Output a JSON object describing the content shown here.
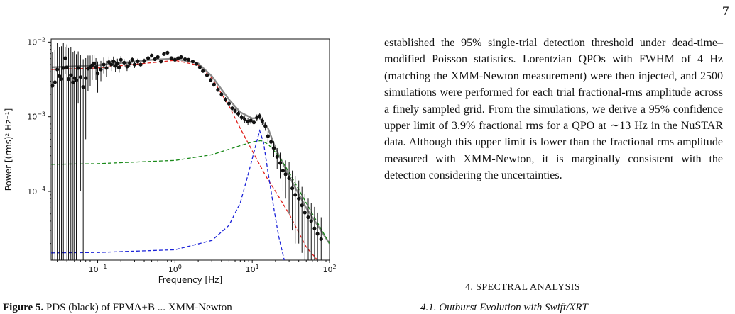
{
  "page_number": "7",
  "paragraph": "established the 95% single-trial detection threshold under dead-time–modified Poisson statistics. Lorentzian QPOs with FWHM of 4 Hz (matching the XMM-Newton measurement) were then injected, and 2500 simulations were performed for each trial fractional-rms amplitude across a finely sampled grid. From the simulations, we derive a 95% confidence upper limit of 3.9% fractional rms for a QPO at ∼13 Hz in the NuSTAR data. Although this upper limit is lower than the fractional rms amplitude measured with XMM-Newton, it is marginally consistent with the detection considering the uncertainties.",
  "section_heading": "4.  SPECTRAL ANALYSIS",
  "subsection_heading": "4.1.  Outburst Evolution with Swift/XRT",
  "caption_fragment": {
    "label": "Figure 5.",
    "text": "PDS (black) of FPMA+B ... XMM-Newton"
  },
  "chart_data": {
    "type": "scatter",
    "xscale": "log",
    "yscale": "log",
    "xlim": [
      0.025,
      100
    ],
    "ylim": [
      1.2e-05,
      0.011
    ],
    "xlabel": "Frequency [Hz]",
    "ylabel": "Power [(rms)² Hz⁻¹]",
    "x_ticks": [
      {
        "v": 0.1,
        "b": "10",
        "e": "−1"
      },
      {
        "v": 1,
        "b": "10",
        "e": "0"
      },
      {
        "v": 10,
        "b": "10",
        "e": "1"
      },
      {
        "v": 100,
        "b": "10",
        "e": "2"
      }
    ],
    "y_ticks": [
      {
        "v": 0.0001,
        "b": "10",
        "e": "−4"
      },
      {
        "v": 0.001,
        "b": "10",
        "e": "−3"
      },
      {
        "v": 0.01,
        "b": "10",
        "e": "−2"
      }
    ],
    "grid": false,
    "colors": {
      "data": "#111111",
      "total": "#8c8c8c",
      "red": "#e0201b",
      "green": "#1a8a1a",
      "blue": "#1a22d8"
    },
    "data_points": [
      [
        0.026,
        0.0026,
        0.0047
      ],
      [
        0.028,
        0.0029,
        0.0049
      ],
      [
        0.03,
        0.0043,
        0.0055
      ],
      [
        0.032,
        0.0035,
        0.0051
      ],
      [
        0.034,
        0.0032,
        0.0056
      ],
      [
        0.036,
        0.0045,
        0.0053
      ],
      [
        0.038,
        0.0061,
        0.0024
      ],
      [
        0.04,
        0.0046,
        0.0047
      ],
      [
        0.042,
        0.0032,
        0.0051
      ],
      [
        0.045,
        0.0036,
        0.005
      ],
      [
        0.048,
        0.0029,
        0.0045
      ],
      [
        0.05,
        0.0033,
        0.0043
      ],
      [
        0.053,
        0.0031,
        0.0038
      ],
      [
        0.056,
        0.0045,
        0.003
      ],
      [
        0.06,
        0.0034,
        0.0033
      ],
      [
        0.065,
        0.0025,
        0.0034
      ],
      [
        0.07,
        0.0033,
        0.0028
      ],
      [
        0.075,
        0.0044,
        0.0022
      ],
      [
        0.08,
        0.0046,
        0.002
      ],
      [
        0.085,
        0.0049,
        0.0018
      ],
      [
        0.09,
        0.0052,
        0.0016
      ],
      [
        0.095,
        0.0046,
        0.0015
      ],
      [
        0.1,
        0.0038,
        0.0017
      ],
      [
        0.11,
        0.0043,
        0.0013
      ],
      [
        0.12,
        0.005,
        0.0012
      ],
      [
        0.13,
        0.0045,
        0.0011
      ],
      [
        0.14,
        0.0054,
        0.001
      ],
      [
        0.15,
        0.005,
        0.0009
      ],
      [
        0.16,
        0.0055,
        0.0009
      ],
      [
        0.17,
        0.0048,
        0.0008
      ],
      [
        0.18,
        0.0052,
        0.0008
      ],
      [
        0.19,
        0.0046,
        0.0007
      ],
      [
        0.2,
        0.0058,
        0.0007
      ],
      [
        0.22,
        0.0053,
        0.0006
      ],
      [
        0.24,
        0.0047,
        0.0006
      ],
      [
        0.26,
        0.0052,
        0.0005
      ],
      [
        0.28,
        0.0058,
        0.0005
      ],
      [
        0.3,
        0.005,
        0.0005
      ],
      [
        0.33,
        0.0055,
        0.0005
      ],
      [
        0.36,
        0.005,
        0.0004
      ],
      [
        0.4,
        0.0056,
        0.0004
      ],
      [
        0.45,
        0.0061,
        0.0004
      ],
      [
        0.5,
        0.0066,
        0.0004
      ],
      [
        0.55,
        0.0059,
        0.0003
      ],
      [
        0.6,
        0.0063,
        0.0003
      ],
      [
        0.66,
        0.0055,
        0.0003
      ],
      [
        0.72,
        0.0069,
        0.0003
      ],
      [
        0.8,
        0.0072,
        0.0003
      ],
      [
        0.9,
        0.0061,
        0.0003
      ],
      [
        1.0,
        0.0058,
        0.0003
      ],
      [
        1.1,
        0.0061,
        0.0003
      ],
      [
        1.2,
        0.0063,
        0.0003
      ],
      [
        1.35,
        0.0059,
        0.0002
      ],
      [
        1.5,
        0.0058,
        0.0002
      ],
      [
        1.7,
        0.0055,
        0.0002
      ],
      [
        1.9,
        0.0051,
        0.0002
      ],
      [
        2.1,
        0.0046,
        0.0002
      ],
      [
        2.3,
        0.0041,
        0.0002
      ],
      [
        2.6,
        0.0036,
        0.0002
      ],
      [
        2.9,
        0.0031,
        0.0002
      ],
      [
        3.2,
        0.0027,
        0.0002
      ],
      [
        3.6,
        0.0023,
        0.00015
      ],
      [
        4.0,
        0.002,
        0.00014
      ],
      [
        4.5,
        0.0017,
        0.00013
      ],
      [
        5.0,
        0.0015,
        0.00012
      ],
      [
        5.5,
        0.0013,
        0.00011
      ],
      [
        6.0,
        0.0012,
        0.0001
      ],
      [
        6.6,
        0.0011,
        0.0001
      ],
      [
        7.3,
        0.00098,
        9e-05
      ],
      [
        8.0,
        0.00092,
        9e-05
      ],
      [
        8.8,
        0.00086,
        9e-05
      ],
      [
        9.6,
        0.00089,
        9e-05
      ],
      [
        10.5,
        0.00084,
        9e-05
      ],
      [
        11.5,
        0.00097,
        0.0001
      ],
      [
        12.5,
        0.00102,
        0.0001
      ],
      [
        13.5,
        0.00088,
        0.0001
      ],
      [
        14.8,
        0.00075,
        0.0001
      ],
      [
        16.0,
        0.00055,
        9e-05
      ],
      [
        17.5,
        0.00046,
        9e-05
      ],
      [
        19.0,
        0.00038,
        9e-05
      ],
      [
        21,
        0.00029,
        9e-05
      ],
      [
        23,
        0.00024,
        9e-05
      ],
      [
        25,
        0.00019,
        9e-05
      ],
      [
        27,
        0.00017,
        9e-05
      ],
      [
        30,
        0.00015,
        0.0001
      ],
      [
        33,
        0.00011,
        8e-05
      ],
      [
        36,
        9e-05,
        7e-05
      ],
      [
        40,
        8e-05,
        6e-05
      ],
      [
        44,
        6.5e-05,
        5e-05
      ],
      [
        48,
        5.2e-05,
        4e-05
      ],
      [
        53,
        4.5e-05,
        3.5e-05
      ],
      [
        58,
        4e-05,
        3e-05
      ],
      [
        64,
        3.2e-05,
        3e-05
      ],
      [
        70,
        2.7e-05,
        2.5e-05
      ],
      [
        78,
        2.3e-05,
        2.2e-05
      ]
    ],
    "models": {
      "total": [
        [
          0.025,
          0.0046
        ],
        [
          0.1,
          0.0049
        ],
        [
          0.5,
          0.0058
        ],
        [
          1.0,
          0.006
        ],
        [
          2.0,
          0.0052
        ],
        [
          3.0,
          0.0035
        ],
        [
          5.0,
          0.0017
        ],
        [
          7.0,
          0.00115
        ],
        [
          10,
          0.00095
        ],
        [
          12.5,
          0.00097
        ],
        [
          16,
          0.0007
        ],
        [
          20,
          0.00038
        ],
        [
          30,
          0.00016
        ],
        [
          50,
          6e-05
        ],
        [
          100,
          2e-05
        ]
      ],
      "red": [
        [
          0.025,
          0.0043
        ],
        [
          0.1,
          0.0045
        ],
        [
          0.5,
          0.0053
        ],
        [
          1.0,
          0.0057
        ],
        [
          2.0,
          0.0049
        ],
        [
          3.0,
          0.0033
        ],
        [
          5.0,
          0.0014
        ],
        [
          7.0,
          0.0007
        ],
        [
          10,
          0.00035
        ],
        [
          15,
          0.00016
        ],
        [
          20,
          0.0001
        ],
        [
          30,
          5e-05
        ],
        [
          50,
          1.8e-05
        ],
        [
          70,
          9.5e-06
        ]
      ],
      "green": [
        [
          0.025,
          0.00023
        ],
        [
          0.1,
          0.000235
        ],
        [
          1.0,
          0.00026
        ],
        [
          3.0,
          0.00031
        ],
        [
          6.0,
          0.00039
        ],
        [
          10,
          0.00046
        ],
        [
          13,
          0.00048
        ],
        [
          16,
          0.00043
        ],
        [
          22,
          0.0003
        ],
        [
          30,
          0.00018
        ],
        [
          50,
          7e-05
        ],
        [
          100,
          2e-05
        ]
      ],
      "blue": [
        [
          0.025,
          1.5e-05
        ],
        [
          0.1,
          1.52e-05
        ],
        [
          1.0,
          1.65e-05
        ],
        [
          3.0,
          2.2e-05
        ],
        [
          5.0,
          3.5e-05
        ],
        [
          7.0,
          7e-05
        ],
        [
          9.0,
          0.00018
        ],
        [
          11,
          0.0004
        ],
        [
          12.5,
          0.00065
        ],
        [
          14,
          0.00045
        ],
        [
          16,
          0.00018
        ],
        [
          19,
          6e-05
        ],
        [
          22,
          2.5e-05
        ],
        [
          26,
          1.1e-05
        ]
      ]
    }
  }
}
